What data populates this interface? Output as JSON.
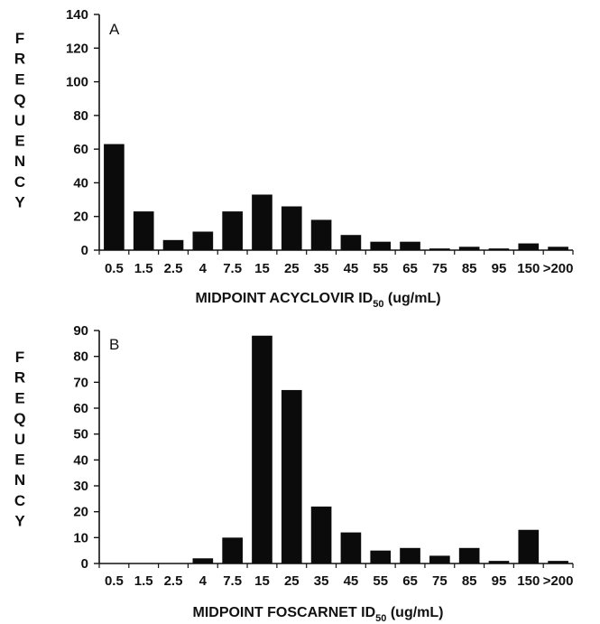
{
  "chart_data": [
    {
      "type": "bar",
      "panel_label": "A",
      "ylabel": "FREQUENCY",
      "xlabel": {
        "main": "MIDPOINT ACYCLOVIR ID",
        "sub": "50",
        "unit": " (ug/mL)"
      },
      "ylim": [
        0,
        140
      ],
      "yticks": [
        0,
        20,
        40,
        60,
        80,
        100,
        120,
        140
      ],
      "categories": [
        "0.5",
        "1.5",
        "2.5",
        "4",
        "7.5",
        "15",
        "25",
        "35",
        "45",
        "55",
        "65",
        "75",
        "85",
        "95",
        "150",
        ">200"
      ],
      "values": [
        63,
        23,
        6,
        11,
        23,
        33,
        26,
        18,
        9,
        5,
        5,
        1,
        2,
        1,
        4,
        2
      ]
    },
    {
      "type": "bar",
      "panel_label": "B",
      "ylabel": "FREQUENCY",
      "xlabel": {
        "main": "MIDPOINT FOSCARNET ID",
        "sub": "50",
        "unit": " (ug/mL)"
      },
      "ylim": [
        0,
        90
      ],
      "yticks": [
        0,
        10,
        20,
        30,
        40,
        50,
        60,
        70,
        80,
        90
      ],
      "categories": [
        "0.5",
        "1.5",
        "2.5",
        "4",
        "7.5",
        "15",
        "25",
        "35",
        "45",
        "55",
        "65",
        "75",
        "85",
        "95",
        "150",
        ">200"
      ],
      "values": [
        0,
        0,
        0,
        2,
        10,
        88,
        67,
        22,
        12,
        5,
        6,
        3,
        6,
        1,
        13,
        1
      ]
    }
  ]
}
